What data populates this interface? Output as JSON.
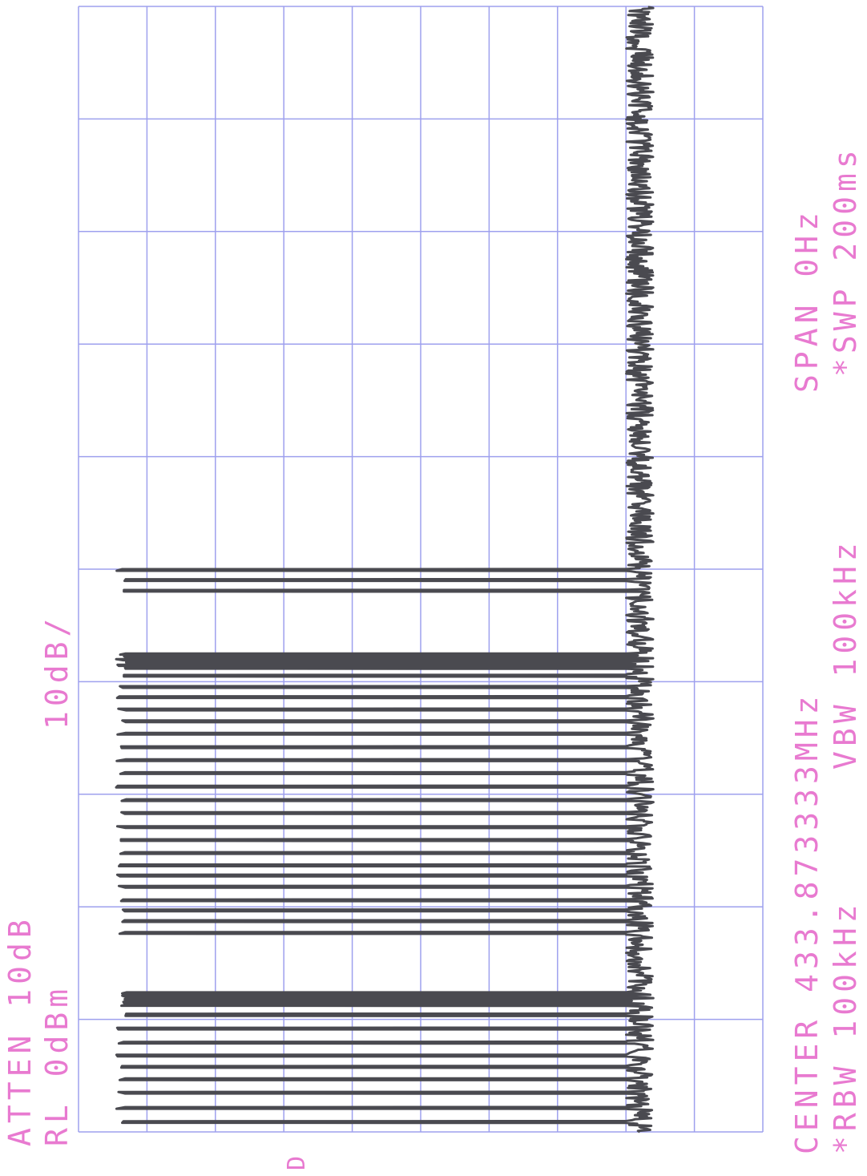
{
  "header": {
    "atten": "ATTEN 10dB",
    "ref_level": "RL 0dBm",
    "scale": "10dB/",
    "marker": "D"
  },
  "footer": {
    "center": "CENTER 433.873333MHz",
    "span": "SPAN 0Hz",
    "rbw": "*RBW 100kHz",
    "vbw": "VBW 100kHz",
    "sweep": "*SWP 200ms"
  },
  "colors": {
    "annotation": "#e87ad0",
    "grid": "#9ea0ee",
    "trace": "#4a4a50",
    "background": "#ffffff"
  },
  "chart_data": {
    "type": "line",
    "orientation": "rotated 90 degrees (time axis vertical, amplitude axis horizontal)",
    "center_frequency": "433.873333MHz",
    "span": "0Hz",
    "reference_level_dbm": 0,
    "attenuation_db": 10,
    "scale_db_per_div": 10,
    "rbw": "100kHz",
    "vbw": "100kHz",
    "sweep_time_ms": 200,
    "time_range_ms": [
      0,
      200
    ],
    "amplitude_range_dbm": [
      -100,
      0
    ],
    "grid": true,
    "divisions": {
      "time": 10,
      "amplitude": 10
    },
    "noise_floor_dbm": -82,
    "pulse_peak_dbm": -7,
    "pulses": [
      {
        "t": 1.6,
        "w": 0.3
      },
      {
        "t": 4.1,
        "w": 0.3
      },
      {
        "t": 6.8,
        "w": 0.3
      },
      {
        "t": 9.2,
        "w": 0.3
      },
      {
        "t": 11.4,
        "w": 0.3
      },
      {
        "t": 13.4,
        "w": 0.3
      },
      {
        "t": 15.7,
        "w": 0.3
      },
      {
        "t": 18.2,
        "w": 0.3
      },
      {
        "t": 20.6,
        "w": 0.4
      },
      {
        "t": 22.4,
        "w": 0.2
      },
      {
        "t": 22.9,
        "w": 0.2
      },
      {
        "t": 23.4,
        "w": 0.2
      },
      {
        "t": 24.0,
        "w": 0.2
      },
      {
        "t": 24.6,
        "w": 0.2
      },
      {
        "t": 35.2,
        "w": 0.3
      },
      {
        "t": 37.3,
        "w": 0.3
      },
      {
        "t": 39.2,
        "w": 0.3
      },
      {
        "t": 41.0,
        "w": 0.3
      },
      {
        "t": 43.4,
        "w": 0.3
      },
      {
        "t": 45.4,
        "w": 0.3
      },
      {
        "t": 47.2,
        "w": 0.3
      },
      {
        "t": 49.4,
        "w": 0.3
      },
      {
        "t": 51.7,
        "w": 0.3
      },
      {
        "t": 54.0,
        "w": 0.3
      },
      {
        "t": 56.5,
        "w": 0.3
      },
      {
        "t": 58.8,
        "w": 0.3
      },
      {
        "t": 61.2,
        "w": 0.3
      },
      {
        "t": 63.6,
        "w": 0.3
      },
      {
        "t": 65.9,
        "w": 0.3
      },
      {
        "t": 68.2,
        "w": 0.3
      },
      {
        "t": 70.6,
        "w": 0.3
      },
      {
        "t": 72.8,
        "w": 0.3
      },
      {
        "t": 74.9,
        "w": 0.3
      },
      {
        "t": 77.1,
        "w": 0.3
      },
      {
        "t": 78.9,
        "w": 0.3
      },
      {
        "t": 80.9,
        "w": 0.3
      },
      {
        "t": 82.3,
        "w": 0.2
      },
      {
        "t": 82.8,
        "w": 0.2
      },
      {
        "t": 83.3,
        "w": 0.2
      },
      {
        "t": 83.8,
        "w": 0.2
      },
      {
        "t": 84.3,
        "w": 0.2
      },
      {
        "t": 84.8,
        "w": 0.2
      },
      {
        "t": 96.0,
        "w": 0.3
      },
      {
        "t": 97.9,
        "w": 0.3
      },
      {
        "t": 99.7,
        "w": 0.3
      }
    ]
  }
}
